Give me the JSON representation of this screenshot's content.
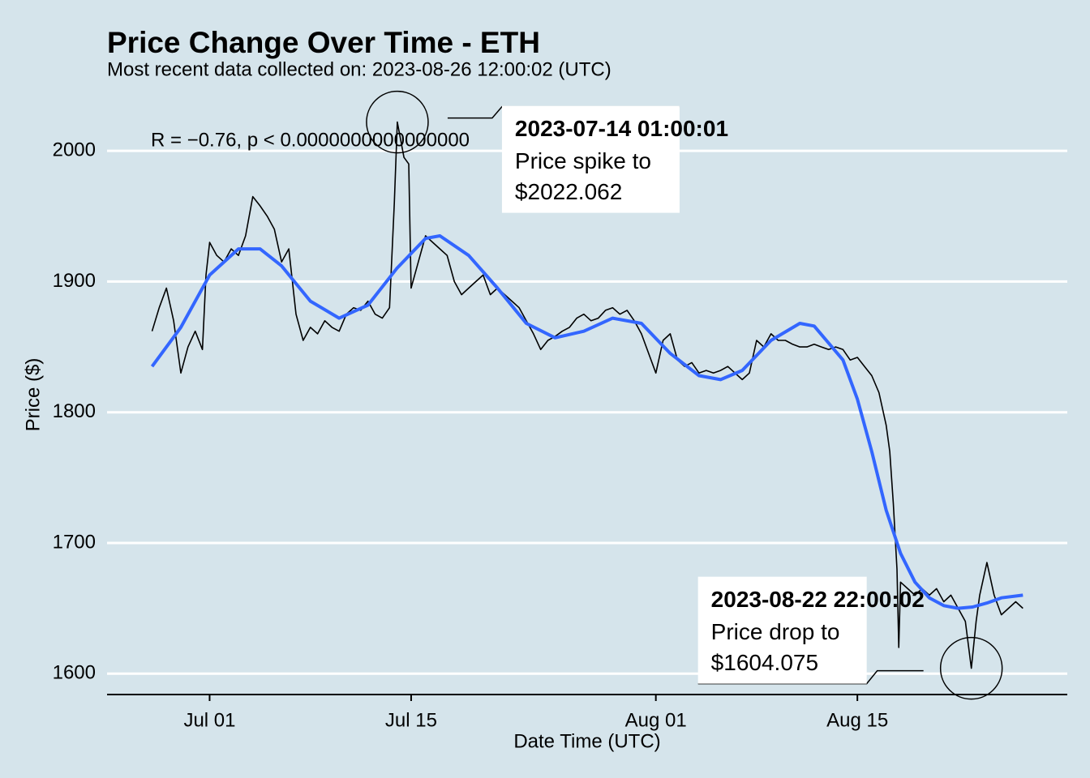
{
  "chart_data": {
    "type": "line",
    "title": "Price Change Over Time - ETH",
    "subtitle": "Most recent data collected on: 2023-08-26 12:00:02 (UTC)",
    "x_label": "Date Time (UTC)",
    "y_label": "Price ($)",
    "xlim": [
      "2023-06-23 21:00",
      "2023-08-29 14:00"
    ],
    "ylim": [
      1584,
      2046
    ],
    "xticks": [
      {
        "value": "2023-07-01",
        "label": "Jul 01"
      },
      {
        "value": "2023-07-15",
        "label": "Jul 15"
      },
      {
        "value": "2023-08-01",
        "label": "Aug 01"
      },
      {
        "value": "2023-08-15",
        "label": "Aug 15"
      }
    ],
    "yticks": [
      1600,
      1700,
      1800,
      1900,
      2000
    ],
    "grid": true,
    "series": [
      {
        "color": "#000000",
        "x": [
          "2023-06-27 00:00",
          "2023-06-27 12:00",
          "2023-06-28 00:00",
          "2023-06-28 12:00",
          "2023-06-29 00:00",
          "2023-06-29 12:00",
          "2023-06-30 00:00",
          "2023-06-30 12:00",
          "2023-06-30 18:00",
          "2023-07-01 00:00",
          "2023-07-01 12:00",
          "2023-07-02 00:00",
          "2023-07-02 12:00",
          "2023-07-03 00:00",
          "2023-07-03 12:00",
          "2023-07-04 00:00",
          "2023-07-04 12:00",
          "2023-07-05 00:00",
          "2023-07-05 12:00",
          "2023-07-06 00:00",
          "2023-07-06 12:00",
          "2023-07-07 00:00",
          "2023-07-07 12:00",
          "2023-07-08 00:00",
          "2023-07-08 12:00",
          "2023-07-09 00:00",
          "2023-07-09 12:00",
          "2023-07-10 00:00",
          "2023-07-10 12:00",
          "2023-07-11 00:00",
          "2023-07-11 12:00",
          "2023-07-12 00:00",
          "2023-07-12 12:00",
          "2023-07-13 00:00",
          "2023-07-13 12:00",
          "2023-07-13 20:00",
          "2023-07-14 01:00",
          "2023-07-14 12:00",
          "2023-07-14 20:00",
          "2023-07-15 00:00",
          "2023-07-15 12:00",
          "2023-07-16 00:00",
          "2023-07-16 12:00",
          "2023-07-17 00:00",
          "2023-07-17 12:00",
          "2023-07-18 00:00",
          "2023-07-18 12:00",
          "2023-07-19 00:00",
          "2023-07-19 12:00",
          "2023-07-20 00:00",
          "2023-07-20 12:00",
          "2023-07-21 00:00",
          "2023-07-21 12:00",
          "2023-07-22 00:00",
          "2023-07-22 12:00",
          "2023-07-23 00:00",
          "2023-07-23 12:00",
          "2023-07-24 00:00",
          "2023-07-24 12:00",
          "2023-07-25 00:00",
          "2023-07-25 12:00",
          "2023-07-26 00:00",
          "2023-07-26 12:00",
          "2023-07-27 00:00",
          "2023-07-27 12:00",
          "2023-07-28 00:00",
          "2023-07-28 12:00",
          "2023-07-29 00:00",
          "2023-07-29 12:00",
          "2023-07-30 00:00",
          "2023-07-30 12:00",
          "2023-07-31 00:00",
          "2023-07-31 12:00",
          "2023-08-01 00:00",
          "2023-08-01 12:00",
          "2023-08-02 00:00",
          "2023-08-02 12:00",
          "2023-08-03 00:00",
          "2023-08-03 12:00",
          "2023-08-04 00:00",
          "2023-08-04 12:00",
          "2023-08-05 00:00",
          "2023-08-05 12:00",
          "2023-08-06 00:00",
          "2023-08-06 12:00",
          "2023-08-07 00:00",
          "2023-08-07 12:00",
          "2023-08-08 00:00",
          "2023-08-08 12:00",
          "2023-08-09 00:00",
          "2023-08-09 12:00",
          "2023-08-10 00:00",
          "2023-08-10 12:00",
          "2023-08-11 00:00",
          "2023-08-11 12:00",
          "2023-08-12 00:00",
          "2023-08-12 12:00",
          "2023-08-13 00:00",
          "2023-08-13 12:00",
          "2023-08-14 00:00",
          "2023-08-14 12:00",
          "2023-08-15 00:00",
          "2023-08-15 12:00",
          "2023-08-16 00:00",
          "2023-08-16 12:00",
          "2023-08-17 00:00",
          "2023-08-17 06:00",
          "2023-08-17 12:00",
          "2023-08-17 18:00",
          "2023-08-17 21:00",
          "2023-08-18 00:00",
          "2023-08-18 12:00",
          "2023-08-19 00:00",
          "2023-08-19 12:00",
          "2023-08-20 00:00",
          "2023-08-20 12:00",
          "2023-08-21 00:00",
          "2023-08-21 12:00",
          "2023-08-22 00:00",
          "2023-08-22 12:00",
          "2023-08-22 22:00",
          "2023-08-23 06:00",
          "2023-08-23 12:00",
          "2023-08-24 00:00",
          "2023-08-24 12:00",
          "2023-08-25 00:00",
          "2023-08-25 12:00",
          "2023-08-26 00:00",
          "2023-08-26 12:00"
        ],
        "values": [
          1862,
          1880,
          1895,
          1870,
          1830,
          1850,
          1862,
          1848,
          1905,
          1930,
          1920,
          1915,
          1925,
          1920,
          1935,
          1965,
          1958,
          1950,
          1940,
          1915,
          1925,
          1875,
          1855,
          1865,
          1860,
          1870,
          1865,
          1862,
          1875,
          1880,
          1878,
          1885,
          1875,
          1872,
          1880,
          1960,
          2022.062,
          1995,
          1990,
          1895,
          1915,
          1935,
          1930,
          1925,
          1920,
          1900,
          1890,
          1895,
          1900,
          1905,
          1890,
          1895,
          1890,
          1885,
          1880,
          1870,
          1860,
          1848,
          1855,
          1858,
          1862,
          1865,
          1872,
          1875,
          1870,
          1872,
          1878,
          1880,
          1875,
          1878,
          1870,
          1860,
          1845,
          1830,
          1855,
          1860,
          1840,
          1835,
          1838,
          1830,
          1832,
          1830,
          1832,
          1835,
          1830,
          1825,
          1830,
          1855,
          1850,
          1860,
          1855,
          1855,
          1852,
          1850,
          1850,
          1852,
          1850,
          1848,
          1850,
          1848,
          1840,
          1842,
          1835,
          1828,
          1815,
          1790,
          1770,
          1730,
          1680,
          1620,
          1670,
          1665,
          1660,
          1665,
          1660,
          1665,
          1655,
          1660,
          1650,
          1640,
          1604.075,
          1640,
          1660,
          1685,
          1660,
          1645,
          1650,
          1655,
          1650
        ]
      },
      {
        "color": "#3366ff",
        "x": [
          "2023-06-27 00:00",
          "2023-06-29 00:00",
          "2023-07-01 00:00",
          "2023-07-03 00:00",
          "2023-07-04 12:00",
          "2023-07-06 00:00",
          "2023-07-08 00:00",
          "2023-07-10 00:00",
          "2023-07-12 00:00",
          "2023-07-14 00:00",
          "2023-07-16 00:00",
          "2023-07-17 00:00",
          "2023-07-19 00:00",
          "2023-07-21 00:00",
          "2023-07-23 00:00",
          "2023-07-25 00:00",
          "2023-07-27 00:00",
          "2023-07-29 00:00",
          "2023-07-31 00:00",
          "2023-08-02 00:00",
          "2023-08-04 00:00",
          "2023-08-05 12:00",
          "2023-08-07 00:00",
          "2023-08-09 00:00",
          "2023-08-11 00:00",
          "2023-08-12 00:00",
          "2023-08-14 00:00",
          "2023-08-15 00:00",
          "2023-08-16 00:00",
          "2023-08-17 00:00",
          "2023-08-18 00:00",
          "2023-08-19 00:00",
          "2023-08-20 00:00",
          "2023-08-21 00:00",
          "2023-08-22 00:00",
          "2023-08-23 00:00",
          "2023-08-24 00:00",
          "2023-08-25 00:00",
          "2023-08-26 12:00"
        ],
        "values": [
          1835,
          1865,
          1905,
          1925,
          1925,
          1912,
          1885,
          1872,
          1882,
          1910,
          1933,
          1935,
          1920,
          1895,
          1868,
          1857,
          1862,
          1872,
          1868,
          1845,
          1828,
          1825,
          1832,
          1855,
          1868,
          1866,
          1840,
          1810,
          1770,
          1725,
          1692,
          1670,
          1658,
          1652,
          1650,
          1651,
          1654,
          1658,
          1660
        ]
      }
    ],
    "stat_label": "R = −0.76, p < 0.0000000000000000",
    "annotations": [
      {
        "x": "2023-07-14 01:00",
        "value": 2022.062,
        "title": "2023-07-14 01:00:01",
        "text": "Price spike to",
        "value_label": "$2022.062"
      },
      {
        "x": "2023-08-22 22:00",
        "value": 1604.075,
        "title": "2023-08-22 22:00:02",
        "text": "Price drop to",
        "value_label": "$1604.075"
      }
    ]
  }
}
